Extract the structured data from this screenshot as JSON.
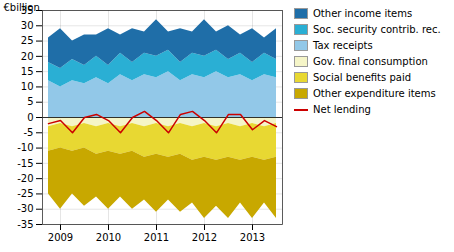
{
  "chart_data": {
    "type": "area",
    "stacked": true,
    "ylabel": "€billion",
    "categories": [
      null,
      "2009",
      null,
      null,
      null,
      "2010",
      null,
      null,
      null,
      "2011",
      null,
      null,
      null,
      "2012",
      null,
      null,
      null,
      "2013",
      null,
      null
    ],
    "ylim": [
      -35,
      35
    ],
    "yticks": [
      -35,
      -30,
      -25,
      -20,
      -15,
      -10,
      -5,
      0,
      5,
      10,
      15,
      20,
      25,
      30,
      35
    ],
    "grid": true,
    "legend": "right",
    "series": [
      {
        "name": "Tax receipts",
        "type": "area",
        "color": "#92c8e8",
        "values": [
          12,
          10,
          12,
          11,
          13,
          11,
          14,
          12,
          14,
          13,
          15,
          12,
          14,
          13,
          15,
          13,
          14,
          12,
          14,
          13
        ]
      },
      {
        "name": "Soc. security contrib. rec.",
        "type": "area",
        "color": "#2aafd4",
        "values": [
          6,
          6,
          7,
          6,
          7,
          6,
          7,
          6,
          7,
          7,
          7,
          6,
          7,
          7,
          7,
          6,
          7,
          6,
          7,
          6
        ]
      },
      {
        "name": "Other income items",
        "type": "area",
        "color": "#1f6ea8",
        "values": [
          8,
          13,
          6,
          10,
          7,
          12,
          6,
          11,
          7,
          12,
          6,
          11,
          7,
          12,
          6,
          11,
          6,
          11,
          5,
          10
        ]
      },
      {
        "name": "Gov. final consumption",
        "type": "area",
        "color": "#f5f5c8",
        "values": [
          -3,
          -2,
          -3,
          -2,
          -3,
          -2,
          -3,
          -2,
          -3,
          -2,
          -3,
          -2,
          -3,
          -2,
          -3,
          -2,
          -3,
          -2,
          -3,
          -2
        ]
      },
      {
        "name": "Social benefits paid",
        "type": "area",
        "color": "#e8d832",
        "values": [
          -8,
          -8,
          -8,
          -8,
          -9,
          -9,
          -9,
          -9,
          -10,
          -10,
          -10,
          -10,
          -11,
          -11,
          -11,
          -11,
          -11,
          -11,
          -11,
          -11
        ]
      },
      {
        "name": "Other expenditure items",
        "type": "area",
        "color": "#c8a800",
        "values": [
          -14,
          -20,
          -14,
          -19,
          -14,
          -19,
          -14,
          -19,
          -14,
          -19,
          -14,
          -19,
          -14,
          -20,
          -15,
          -20,
          -14,
          -20,
          -14,
          -20
        ]
      },
      {
        "name": "Net lending",
        "type": "line",
        "color": "#cc0000",
        "values": [
          -2,
          -1,
          -5,
          0,
          1,
          -1,
          -5,
          0,
          2,
          -1,
          -5,
          1,
          2,
          -1,
          -5,
          1,
          1,
          -4,
          -1,
          -3
        ]
      }
    ]
  }
}
